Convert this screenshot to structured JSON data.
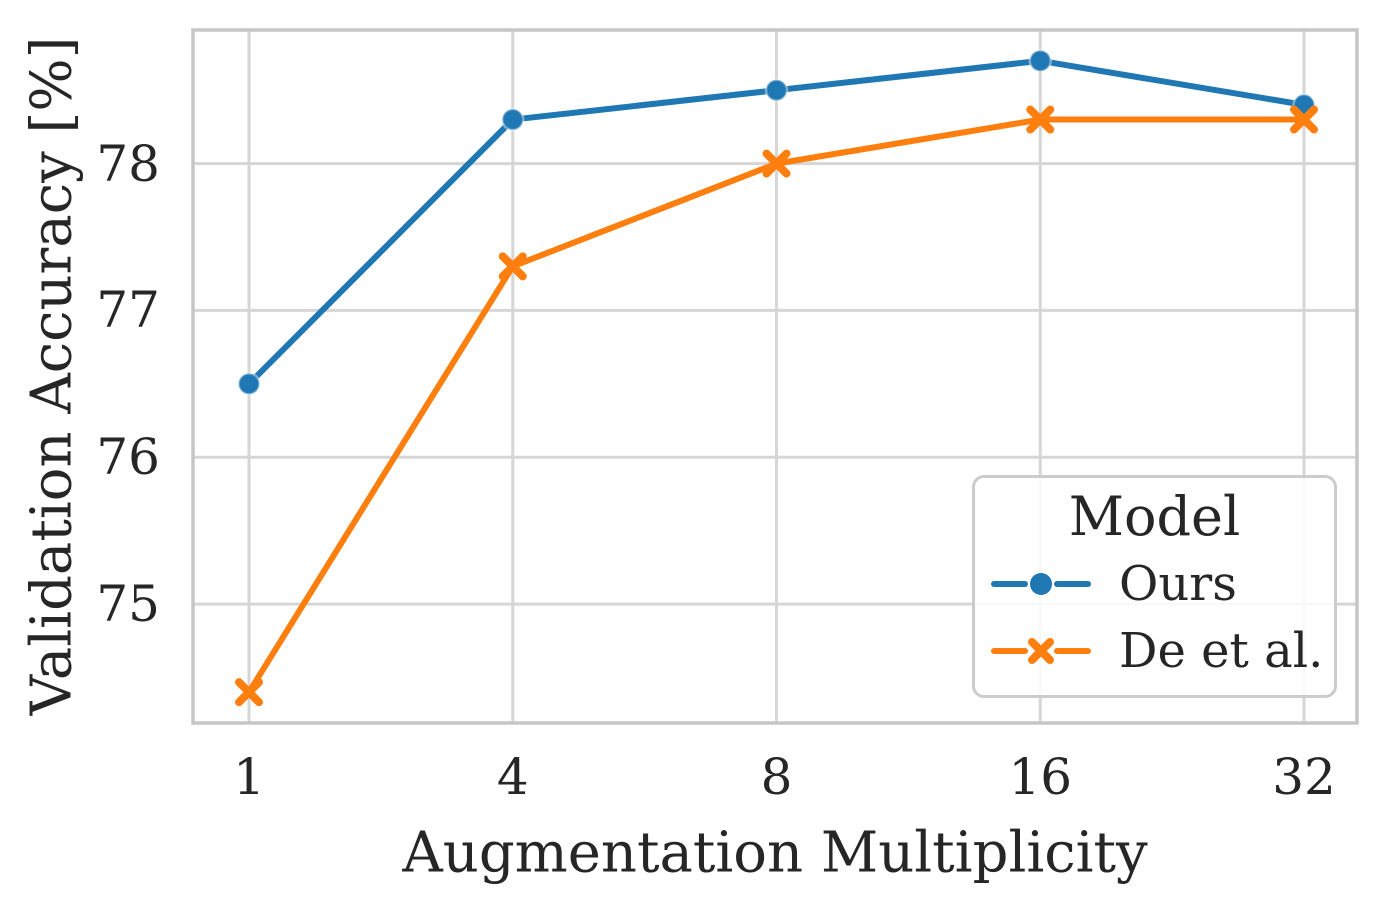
{
  "chart_data": {
    "type": "line",
    "title": "",
    "xlabel": "Augmentation Multiplicity",
    "ylabel": "Validation Accuracy [%]",
    "categories": [
      "1",
      "4",
      "8",
      "16",
      "32"
    ],
    "yticks": [
      "75",
      "76",
      "77",
      "78"
    ],
    "ylim": [
      74.19,
      78.91
    ],
    "x_scale": "categorical-equal-spacing",
    "grid": true,
    "legend": {
      "title": "Model",
      "position": "lower right"
    },
    "series": [
      {
        "name": "Ours",
        "color": "#1f77b4",
        "marker": "circle",
        "values": [
          76.5,
          78.3,
          78.5,
          78.7,
          78.4
        ]
      },
      {
        "name": "De et al.",
        "color": "#ff7f0e",
        "marker": "x",
        "values": [
          74.4,
          77.3,
          78.0,
          78.3,
          78.3
        ]
      }
    ],
    "colors": {
      "grid": "#d6d6d6",
      "spine": "#c6c6c6",
      "text": "#262626"
    }
  }
}
